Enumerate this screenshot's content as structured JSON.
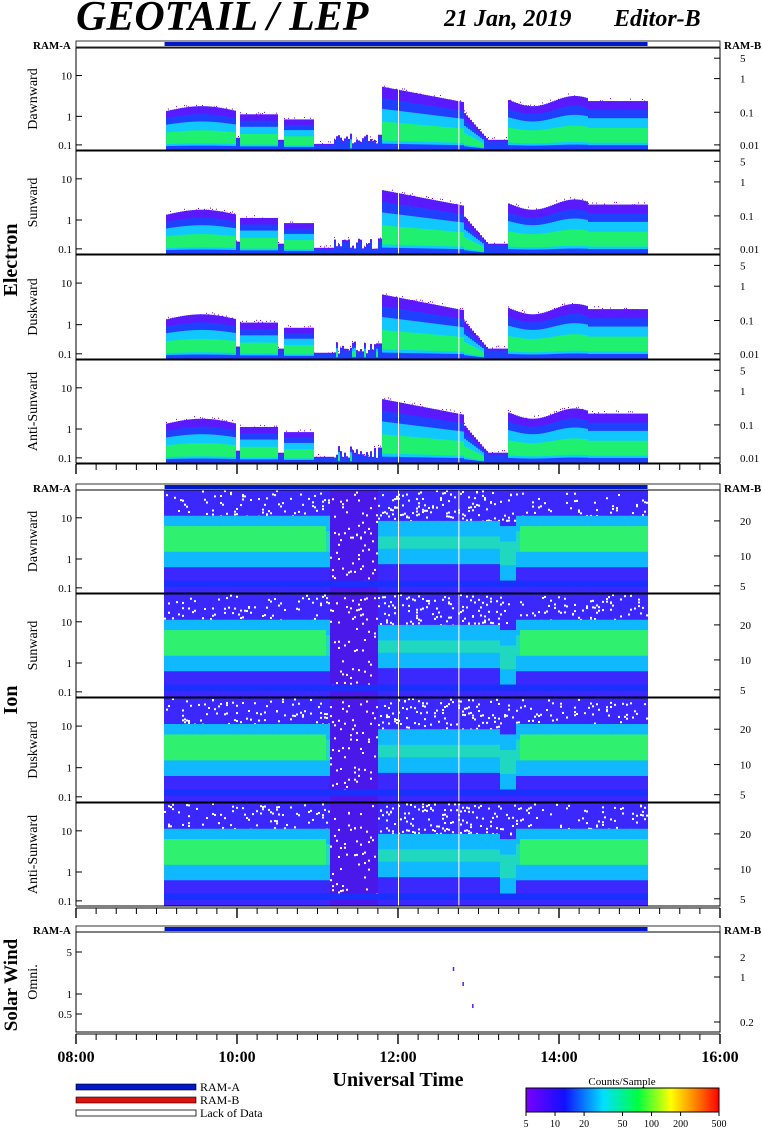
{
  "header": {
    "title": "GEOTAIL / LEP",
    "date": "21 Jan, 2019",
    "editor": "Editor-B"
  },
  "chart_data": {
    "type": "heatmap",
    "xlabel": "Universal Time",
    "x_ticks": [
      "08:00",
      "10:00",
      "12:00",
      "14:00",
      "16:00"
    ],
    "x_range": [
      "08:00",
      "16:00"
    ],
    "ram_left": "RAM-A",
    "ram_right": "RAM-B",
    "ram_bar_range": [
      "09:06",
      "15:06"
    ],
    "data_gaps_ut": [
      "12:00",
      "12:45"
    ],
    "groups": [
      {
        "name": "Electron",
        "panels": [
          {
            "direction": "Dawnward",
            "left_ticks": [
              "10",
              "1",
              "0.1"
            ],
            "right_ticks": [
              "5",
              "1",
              "0.1",
              "0.01"
            ]
          },
          {
            "direction": "Sunward",
            "left_ticks": [
              "10",
              "1",
              "0.1"
            ],
            "right_ticks": [
              "5",
              "1",
              "0.1",
              "0.01"
            ]
          },
          {
            "direction": "Duskward",
            "left_ticks": [
              "10",
              "1",
              "0.1"
            ],
            "right_ticks": [
              "5",
              "1",
              "0.1",
              "0.01"
            ]
          },
          {
            "direction": "Anti-Sunward",
            "left_ticks": [
              "10",
              "1",
              "0.1"
            ],
            "right_ticks": [
              "5",
              "1",
              "0.1",
              "0.01"
            ]
          }
        ]
      },
      {
        "name": "Ion",
        "panels": [
          {
            "direction": "Dawnward",
            "left_ticks": [
              "10",
              "1",
              "0.1"
            ],
            "right_ticks": [
              "20",
              "10",
              "5"
            ]
          },
          {
            "direction": "Sunward",
            "left_ticks": [
              "10",
              "1",
              "0.1"
            ],
            "right_ticks": [
              "20",
              "10",
              "5"
            ]
          },
          {
            "direction": "Duskward",
            "left_ticks": [
              "10",
              "1",
              "0.1"
            ],
            "right_ticks": [
              "20",
              "10",
              "5"
            ]
          },
          {
            "direction": "Anti-Sunward",
            "left_ticks": [
              "10",
              "1",
              "0.1"
            ],
            "right_ticks": [
              "20",
              "10",
              "5"
            ]
          }
        ]
      },
      {
        "name": "Solar Wind",
        "panels": [
          {
            "direction": "Omni.",
            "left_ticks": [
              "5",
              "1",
              "0.5"
            ],
            "right_ticks": [
              "2",
              "1",
              "0.2"
            ]
          }
        ]
      }
    ],
    "legend": [
      {
        "label": "RAM-A",
        "color": "#0018c8"
      },
      {
        "label": "RAM-B",
        "color": "#e01010"
      },
      {
        "label": "Lack of Data",
        "color": "#ffffff"
      }
    ],
    "colorbar": {
      "title": "Counts/Sample",
      "ticks": [
        "5",
        "10",
        "20",
        "50",
        "100",
        "200",
        "500"
      ],
      "values": [
        5,
        10,
        20,
        50,
        100,
        200,
        500
      ],
      "colors": [
        "#ffffff",
        "#7a00ff",
        "#0020ff",
        "#00e0ff",
        "#00ff40",
        "#ffff00",
        "#ff0000"
      ]
    }
  }
}
